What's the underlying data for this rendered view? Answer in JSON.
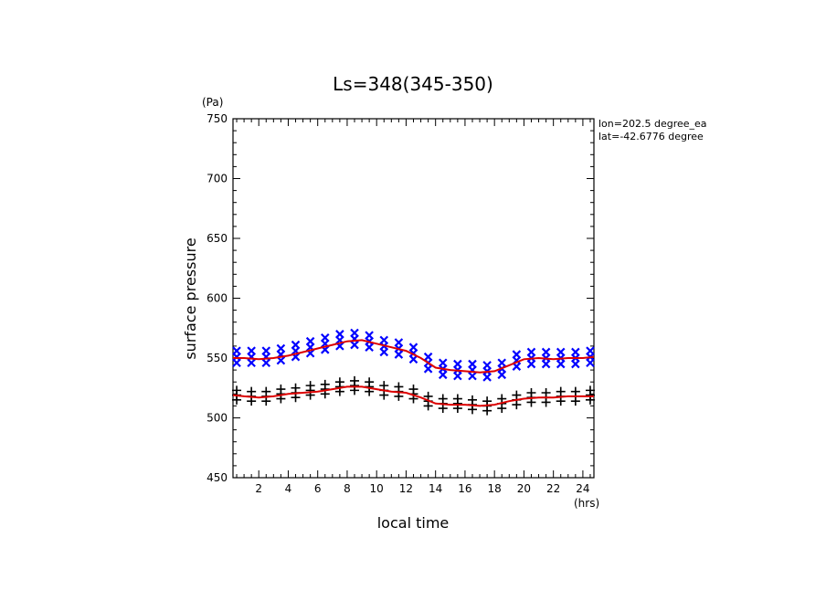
{
  "chart_data": {
    "type": "scatter",
    "title": "Ls=348(345-350)",
    "xlabel": "local time",
    "ylabel": "surface pressure",
    "x_unit": "(hrs)",
    "y_unit": "(Pa)",
    "xlim": [
      0.25,
      24.75
    ],
    "ylim": [
      450,
      750
    ],
    "x_ticks": [
      2,
      4,
      6,
      8,
      10,
      12,
      14,
      16,
      18,
      20,
      22,
      24
    ],
    "y_ticks": [
      450,
      500,
      550,
      600,
      650,
      700,
      750
    ],
    "annotations": [
      "lon=202.5 degree_ea",
      "lat=-42.6776 degree"
    ],
    "grid": false,
    "series": [
      {
        "marker": "x",
        "color": "#0000ff",
        "x": [
          0.5,
          1.5,
          2.5,
          3.5,
          4.5,
          5.5,
          6.5,
          7.5,
          8.5,
          9.5,
          10.5,
          11.5,
          12.5,
          13.5,
          14.5,
          15.5,
          16.5,
          17.5,
          18.5,
          19.5,
          20.5,
          21.5,
          22.5,
          23.5,
          24.5
        ],
        "values": [
          551,
          551,
          551,
          553,
          556,
          559,
          562,
          565,
          566,
          564,
          560,
          558,
          554,
          546,
          541,
          540,
          540,
          539,
          541,
          548,
          550,
          550,
          550,
          550,
          551
        ],
        "spread": 5
      },
      {
        "marker": "+",
        "color": "#000000",
        "x": [
          0.5,
          1.5,
          2.5,
          3.5,
          4.5,
          5.5,
          6.5,
          7.5,
          8.5,
          9.5,
          10.5,
          11.5,
          12.5,
          13.5,
          14.5,
          15.5,
          16.5,
          17.5,
          18.5,
          19.5,
          20.5,
          21.5,
          22.5,
          23.5,
          24.5
        ],
        "values": [
          519,
          518,
          518,
          520,
          521,
          523,
          524,
          526,
          527,
          526,
          523,
          522,
          520,
          514,
          512,
          512,
          511,
          510,
          512,
          515,
          517,
          517,
          518,
          518,
          519
        ],
        "spread": 4
      },
      {
        "marker": "line",
        "color": "#dd0000",
        "x": [
          0.25,
          1,
          2,
          3,
          4,
          5,
          6,
          7,
          8,
          9,
          10,
          11,
          12,
          13,
          14,
          15,
          16,
          17,
          18,
          19,
          20,
          21,
          22,
          23,
          24,
          24.75
        ],
        "values": [
          550,
          550,
          549,
          550,
          552,
          555,
          558,
          561,
          564,
          565,
          562,
          559,
          556,
          550,
          542,
          540,
          539,
          538,
          539,
          544,
          549,
          550,
          549,
          550,
          550,
          551
        ]
      },
      {
        "marker": "line",
        "color": "#dd0000",
        "x": [
          0.25,
          1,
          2,
          3,
          4,
          5,
          6,
          7,
          8,
          9,
          10,
          11,
          12,
          13,
          14,
          15,
          16,
          17,
          18,
          19,
          20,
          21,
          22,
          23,
          24,
          24.75
        ],
        "values": [
          519,
          518,
          517,
          518,
          520,
          521,
          522,
          524,
          526,
          526,
          524,
          522,
          521,
          517,
          512,
          511,
          511,
          510,
          511,
          514,
          516,
          517,
          517,
          518,
          518,
          518
        ]
      }
    ]
  }
}
